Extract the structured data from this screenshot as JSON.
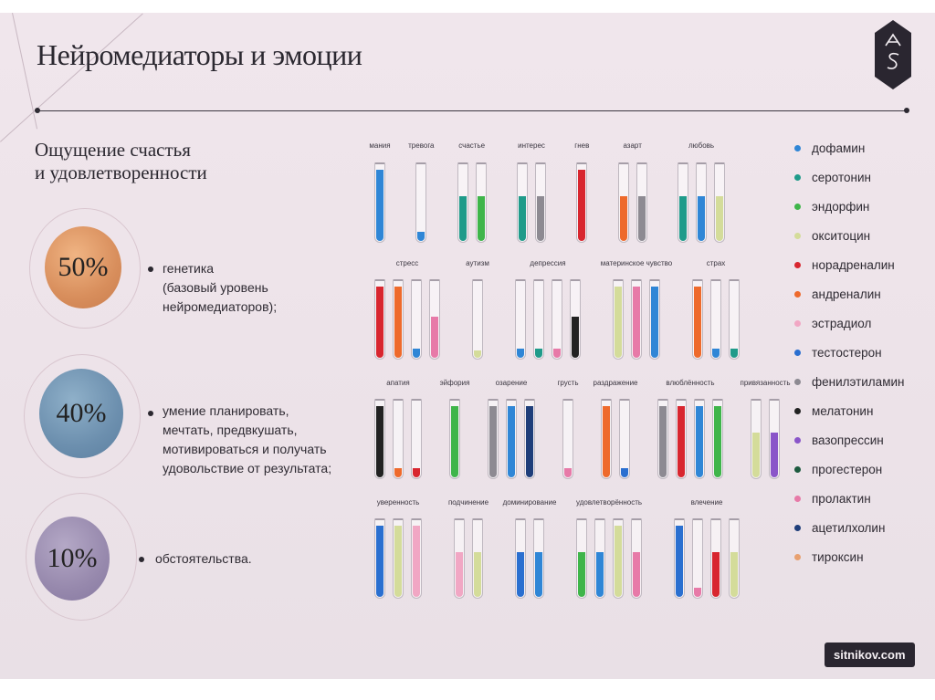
{
  "title": "Нейромедиаторы и эмоции",
  "subtitle_lines": [
    "Ощущение счастья",
    "и удовлетворенности"
  ],
  "factors": [
    {
      "percent": "50%",
      "color": "#dd9a6a",
      "lines": [
        "генетика",
        "(базовый уровень",
        "нейромедиаторов);"
      ]
    },
    {
      "percent": "40%",
      "color": "#6f93b4",
      "lines": [
        "умение планировать,",
        "мечтать, предвкушать,",
        "мотивироваться и получать",
        "удовольствие от результата;"
      ]
    },
    {
      "percent": "10%",
      "color": "#9a8eaf",
      "lines": [
        "обстоятельства."
      ]
    }
  ],
  "legend": [
    {
      "name": "дофамин",
      "color": "#2f86d6"
    },
    {
      "name": "серотонин",
      "color": "#1f9b8a"
    },
    {
      "name": "эндорфин",
      "color": "#3fb54a"
    },
    {
      "name": "окситоцин",
      "color": "#d4dc9a"
    },
    {
      "name": "норадреналин",
      "color": "#d8262f"
    },
    {
      "name": "андреналин",
      "color": "#ee6a2c"
    },
    {
      "name": "эстрадиол",
      "color": "#f1a7c4"
    },
    {
      "name": "тестостерон",
      "color": "#2a6fd0"
    },
    {
      "name": "фенилэтиламин",
      "color": "#8d8a92"
    },
    {
      "name": "мелатонин",
      "color": "#222222"
    },
    {
      "name": "вазопрессин",
      "color": "#8a55c9"
    },
    {
      "name": "прогестерон",
      "color": "#1d5a3f"
    },
    {
      "name": "пролактин",
      "color": "#e77aa8"
    },
    {
      "name": "ацетилхолин",
      "color": "#1f3e7a"
    },
    {
      "name": "тироксин",
      "color": "#e8a070"
    }
  ],
  "tube_rows": [
    {
      "groups": [
        {
          "label": "мания",
          "tubes": [
            {
              "color": "#2f86d6",
              "level": 0.95
            }
          ]
        },
        {
          "label": "тревога",
          "tubes": [
            {
              "color": "#2f86d6",
              "level": 0.12
            }
          ]
        },
        {
          "label": "счастье",
          "tubes": [
            {
              "color": "#1f9b8a",
              "level": 0.6
            },
            {
              "color": "#3fb54a",
              "level": 0.6
            }
          ]
        },
        {
          "label": "интерес",
          "tubes": [
            {
              "color": "#1f9b8a",
              "level": 0.6
            },
            {
              "color": "#8d8a92",
              "level": 0.6
            }
          ]
        },
        {
          "label": "гнев",
          "tubes": [
            {
              "color": "#d8262f",
              "level": 0.95
            }
          ]
        },
        {
          "label": "азарт",
          "tubes": [
            {
              "color": "#ee6a2c",
              "level": 0.6
            },
            {
              "color": "#8d8a92",
              "level": 0.6
            }
          ]
        },
        {
          "label": "любовь",
          "tubes": [
            {
              "color": "#1f9b8a",
              "level": 0.6
            },
            {
              "color": "#2f86d6",
              "level": 0.6
            },
            {
              "color": "#d4dc9a",
              "level": 0.6
            }
          ]
        }
      ]
    },
    {
      "groups": [
        {
          "label": "стресс",
          "tubes": [
            {
              "color": "#d8262f",
              "level": 0.95
            },
            {
              "color": "#ee6a2c",
              "level": 0.95
            },
            {
              "color": "#2f86d6",
              "level": 0.12
            },
            {
              "color": "#e77aa8",
              "level": 0.55
            }
          ]
        },
        {
          "label": "аутизм",
          "tubes": [
            {
              "color": "#d4dc9a",
              "level": 0.1
            }
          ]
        },
        {
          "label": "депрессия",
          "tubes": [
            {
              "color": "#2f86d6",
              "level": 0.12
            },
            {
              "color": "#1f9b8a",
              "level": 0.12
            },
            {
              "color": "#e77aa8",
              "level": 0.12
            },
            {
              "color": "#222222",
              "level": 0.55
            }
          ]
        },
        {
          "label": "материнское чувство",
          "tubes": [
            {
              "color": "#d4dc9a",
              "level": 0.95
            },
            {
              "color": "#e77aa8",
              "level": 0.95
            },
            {
              "color": "#2f86d6",
              "level": 0.95
            }
          ]
        },
        {
          "label": "страх",
          "tubes": [
            {
              "color": "#ee6a2c",
              "level": 0.95
            },
            {
              "color": "#2f86d6",
              "level": 0.12
            },
            {
              "color": "#1f9b8a",
              "level": 0.12
            }
          ]
        }
      ]
    },
    {
      "groups": [
        {
          "label": "апатия",
          "tubes": [
            {
              "color": "#222222",
              "level": 0.95
            },
            {
              "color": "#ee6a2c",
              "level": 0.12
            },
            {
              "color": "#d8262f",
              "level": 0.12
            }
          ]
        },
        {
          "label": "эйфория",
          "tubes": [
            {
              "color": "#3fb54a",
              "level": 0.95
            }
          ]
        },
        {
          "label": "озарение",
          "tubes": [
            {
              "color": "#8d8a92",
              "level": 0.95
            },
            {
              "color": "#2f86d6",
              "level": 0.95
            },
            {
              "color": "#1f3e7a",
              "level": 0.95
            }
          ]
        },
        {
          "label": "грусть",
          "tubes": [
            {
              "color": "#e77aa8",
              "level": 0.12
            }
          ]
        },
        {
          "label": "раздражение",
          "tubes": [
            {
              "color": "#ee6a2c",
              "level": 0.95
            },
            {
              "color": "#2a6fd0",
              "level": 0.12
            }
          ]
        },
        {
          "label": "влюблённость",
          "tubes": [
            {
              "color": "#8d8a92",
              "level": 0.95
            },
            {
              "color": "#d8262f",
              "level": 0.95
            },
            {
              "color": "#2f86d6",
              "level": 0.95
            },
            {
              "color": "#3fb54a",
              "level": 0.95
            }
          ]
        },
        {
          "label": "привязанность",
          "tubes": [
            {
              "color": "#d4dc9a",
              "level": 0.6
            },
            {
              "color": "#8a55c9",
              "level": 0.6
            }
          ]
        }
      ]
    },
    {
      "groups": [
        {
          "label": "уверенность",
          "tubes": [
            {
              "color": "#2a6fd0",
              "level": 0.95
            },
            {
              "color": "#d4dc9a",
              "level": 0.95
            },
            {
              "color": "#f1a7c4",
              "level": 0.95
            }
          ]
        },
        {
          "label": "подчинение",
          "tubes": [
            {
              "color": "#f1a7c4",
              "level": 0.6
            },
            {
              "color": "#d4dc9a",
              "level": 0.6
            }
          ]
        },
        {
          "label": "доминирование",
          "tubes": [
            {
              "color": "#2a6fd0",
              "level": 0.6
            },
            {
              "color": "#2f86d6",
              "level": 0.6
            }
          ]
        },
        {
          "label": "удовлетворённость",
          "tubes": [
            {
              "color": "#3fb54a",
              "level": 0.6
            },
            {
              "color": "#2f86d6",
              "level": 0.6
            },
            {
              "color": "#d4dc9a",
              "level": 0.95
            },
            {
              "color": "#e77aa8",
              "level": 0.6
            }
          ]
        },
        {
          "label": "влечение",
          "tubes": [
            {
              "color": "#2a6fd0",
              "level": 0.95
            },
            {
              "color": "#e77aa8",
              "level": 0.12
            },
            {
              "color": "#d8262f",
              "level": 0.6
            },
            {
              "color": "#d4dc9a",
              "level": 0.6
            }
          ]
        }
      ]
    }
  ],
  "footer": "sitnikov.com"
}
